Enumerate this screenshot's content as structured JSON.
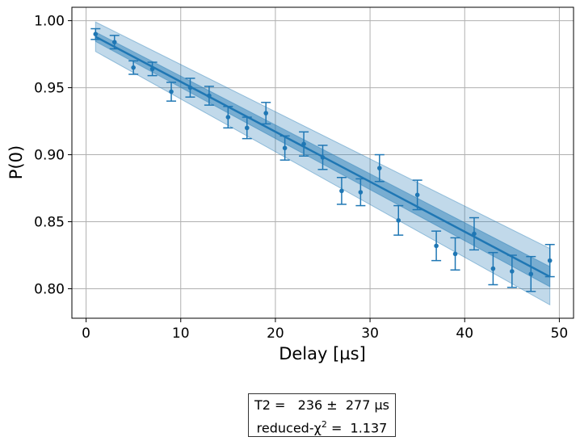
{
  "chart_data": {
    "type": "scatter",
    "xlabel": "Delay [µs]",
    "ylabel": "P(0)",
    "xlim": [
      -1.5,
      51.5
    ],
    "ylim": [
      0.778,
      1.01
    ],
    "xticks": [
      0,
      10,
      20,
      30,
      40,
      50
    ],
    "xtick_labels": [
      "0",
      "10",
      "20",
      "30",
      "40",
      "50"
    ],
    "yticks": [
      0.8,
      0.85,
      0.9,
      0.95,
      1.0
    ],
    "ytick_labels": [
      "0.80",
      "0.85",
      "0.90",
      "0.95",
      "1.00"
    ],
    "grid": true,
    "color": "#1f77b4",
    "series": [
      {
        "x": [
          1,
          3,
          5,
          7,
          9,
          11,
          13,
          15,
          17,
          19,
          21,
          23,
          25,
          27,
          29,
          31,
          33,
          35,
          37,
          39,
          41,
          43,
          45,
          47,
          49
        ],
        "y": [
          0.99,
          0.984,
          0.965,
          0.964,
          0.947,
          0.95,
          0.944,
          0.928,
          0.92,
          0.931,
          0.905,
          0.908,
          0.898,
          0.873,
          0.872,
          0.89,
          0.851,
          0.87,
          0.832,
          0.826,
          0.841,
          0.815,
          0.813,
          0.811,
          0.821
        ],
        "yerr": [
          0.004,
          0.005,
          0.005,
          0.005,
          0.007,
          0.007,
          0.007,
          0.008,
          0.008,
          0.008,
          0.009,
          0.009,
          0.009,
          0.01,
          0.01,
          0.01,
          0.011,
          0.011,
          0.011,
          0.012,
          0.012,
          0.012,
          0.012,
          0.013,
          0.012
        ]
      }
    ],
    "fit": {
      "x": [
        1,
        49
      ],
      "y": [
        0.988,
        0.809
      ],
      "inner_band_halfwidth": [
        0.0035,
        0.0075
      ],
      "outer_band_halfwidth": [
        0.011,
        0.021
      ]
    }
  },
  "fit_box": {
    "line1": "T2 =   236 ±  277 µs",
    "line2_prefix": "reduced-χ",
    "line2_sup": "2",
    "line2_suffix": " =  1.137"
  }
}
